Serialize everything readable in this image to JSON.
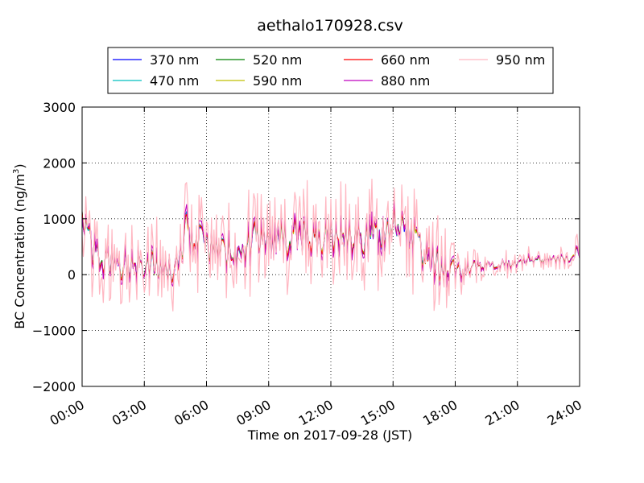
{
  "chart_data": {
    "type": "line",
    "title": "aethalo170928.csv",
    "xlabel": "Time on 2017-09-28 (JST)",
    "ylabel": "BC Concentration (ng/m³)",
    "ylabel_main": "BC Concentration (ng/m",
    "ylabel_sup": "3",
    "ylabel_end": ")",
    "xlim": [
      0,
      24
    ],
    "ylim": [
      -2000,
      3000
    ],
    "x_ticks": [
      0,
      3,
      6,
      9,
      12,
      15,
      18,
      21,
      24
    ],
    "x_tick_labels": [
      "00:00",
      "03:00",
      "06:00",
      "09:00",
      "12:00",
      "15:00",
      "18:00",
      "21:00",
      "24:00"
    ],
    "y_ticks": [
      -2000,
      -1000,
      0,
      1000,
      2000,
      3000
    ],
    "y_tick_labels": [
      "−2000",
      "−1000",
      "0",
      "1000",
      "2000",
      "3000"
    ],
    "grid": true,
    "legend_position": "top (above plot)",
    "series": [
      {
        "name": "370 nm",
        "color": "#0000ff"
      },
      {
        "name": "470 nm",
        "color": "#00bfbf"
      },
      {
        "name": "520 nm",
        "color": "#008000"
      },
      {
        "name": "590 nm",
        "color": "#bfbf00"
      },
      {
        "name": "660 nm",
        "color": "#ff0000"
      },
      {
        "name": "880 nm",
        "color": "#bf00bf"
      },
      {
        "name": "950 nm",
        "color": "#ffb6c1"
      }
    ],
    "envelope": {
      "times": [
        0.0,
        0.5,
        1.0,
        1.5,
        2.0,
        2.5,
        3.0,
        3.5,
        4.0,
        4.5,
        5.0,
        5.5,
        6.0,
        6.5,
        7.0,
        7.5,
        8.0,
        8.5,
        9.0,
        9.5,
        10.0,
        10.5,
        11.0,
        11.5,
        12.0,
        12.5,
        13.0,
        13.5,
        14.0,
        14.5,
        15.0,
        15.5,
        16.0,
        16.5,
        17.0,
        17.5,
        18.0,
        18.5,
        19.0,
        19.5,
        20.0,
        20.5,
        21.0,
        21.5,
        22.0,
        22.5,
        23.0,
        23.5,
        24.0
      ],
      "levels": [
        1200,
        500,
        250,
        250,
        200,
        150,
        150,
        100,
        100,
        200,
        700,
        700,
        500,
        500,
        400,
        400,
        550,
        600,
        600,
        650,
        650,
        700,
        650,
        650,
        750,
        650,
        700,
        650,
        700,
        800,
        900,
        800,
        650,
        400,
        250,
        0,
        50,
        100,
        150,
        200,
        200,
        200,
        200,
        250,
        250,
        300,
        300,
        300,
        400
      ],
      "amplitudes": [
        400,
        300,
        300,
        300,
        300,
        300,
        300,
        300,
        300,
        300,
        400,
        400,
        300,
        300,
        300,
        300,
        350,
        350,
        350,
        350,
        350,
        350,
        350,
        350,
        350,
        350,
        350,
        350,
        350,
        350,
        350,
        350,
        350,
        350,
        350,
        300,
        200,
        150,
        120,
        100,
        100,
        100,
        100,
        100,
        100,
        100,
        100,
        100,
        150
      ]
    }
  }
}
